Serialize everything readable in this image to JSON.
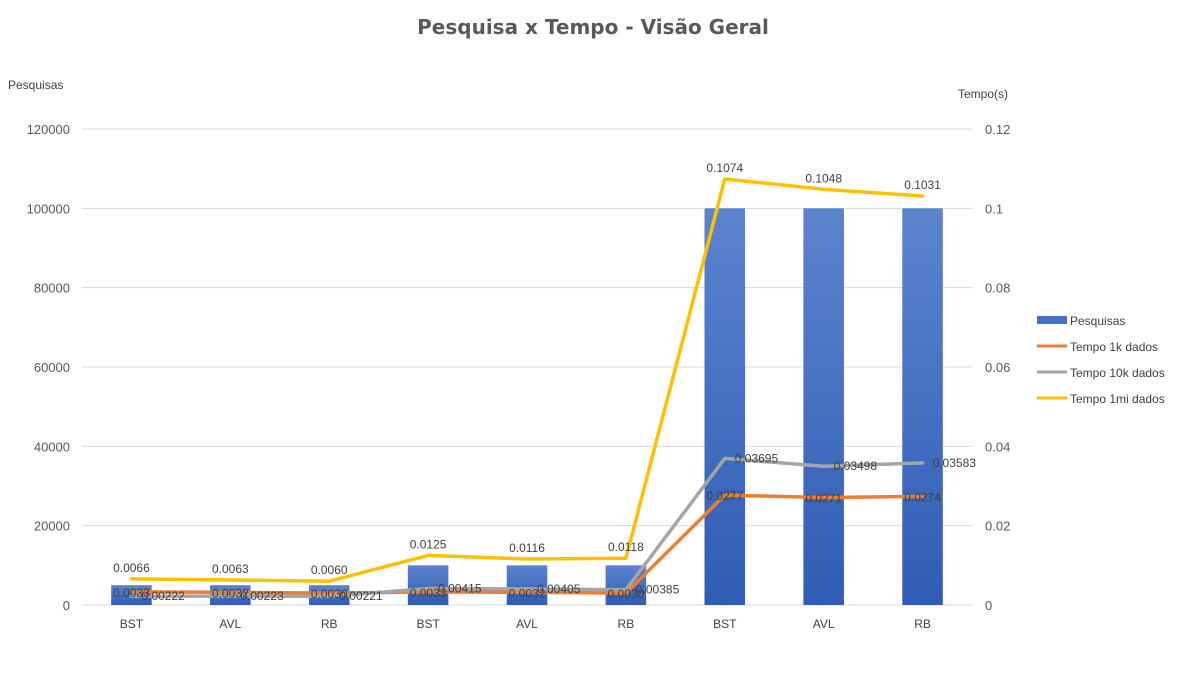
{
  "chart_data": {
    "type": "bar",
    "title": "Pesquisa x Tempo - Visão Geral",
    "y_left_label": "Pesquisas",
    "y_right_label": "Tempo(s)",
    "categories": [
      "BST",
      "AVL",
      "RB",
      "BST",
      "AVL",
      "RB",
      "BST",
      "AVL",
      "RB"
    ],
    "y_left": {
      "min": 0,
      "max": 120000,
      "step": 20000,
      "ticks": [
        "0",
        "20000",
        "40000",
        "60000",
        "80000",
        "100000",
        "120000"
      ]
    },
    "y_right": {
      "min": 0,
      "max": 0.12,
      "step": 0.02,
      "ticks": [
        "0",
        "0.02",
        "0.04",
        "0.06",
        "0.08",
        "0.1",
        "0.12"
      ]
    },
    "grid": true,
    "legend_position": "right",
    "series": [
      {
        "name": "Pesquisas",
        "kind": "bar",
        "axis": "left",
        "color": "#4472c4",
        "values": [
          5000,
          5000,
          5000,
          10000,
          10000,
          10000,
          100000,
          100000,
          100000
        ]
      },
      {
        "name": "Tempo 1k dados",
        "kind": "line",
        "axis": "right",
        "color": "#ed7d31",
        "values": [
          0.0033,
          0.0032,
          0.003,
          0.0033,
          0.0032,
          0.003,
          0.0277,
          0.0271,
          0.0274
        ],
        "labels": [
          "0.0033",
          "0.0032",
          "0.0030",
          "0.0033",
          "0.0032",
          "0.0030",
          "0.0277",
          "0.0271",
          "0.0274"
        ]
      },
      {
        "name": "Tempo 10k dados",
        "kind": "line",
        "axis": "right",
        "color": "#a5a5a5",
        "values": [
          0.00222,
          0.00223,
          0.00221,
          0.00415,
          0.00405,
          0.00385,
          0.03695,
          0.03498,
          0.03583
        ],
        "labels": [
          "0.00222",
          "0.00223",
          "0.00221",
          "0.00415",
          "0.00405",
          "0.00385",
          "0.03695",
          "0.03498",
          "0.03583"
        ]
      },
      {
        "name": "Tempo 1mi dados",
        "kind": "line",
        "axis": "right",
        "color": "#ffc000",
        "values": [
          0.0066,
          0.0063,
          0.006,
          0.0125,
          0.0116,
          0.0118,
          0.1074,
          0.1048,
          0.1031
        ],
        "labels": [
          "0.0066",
          "0.0063",
          "0.0060",
          "0.0125",
          "0.0116",
          "0.0118",
          "0.1074",
          "0.1048",
          "0.1031"
        ]
      }
    ]
  }
}
